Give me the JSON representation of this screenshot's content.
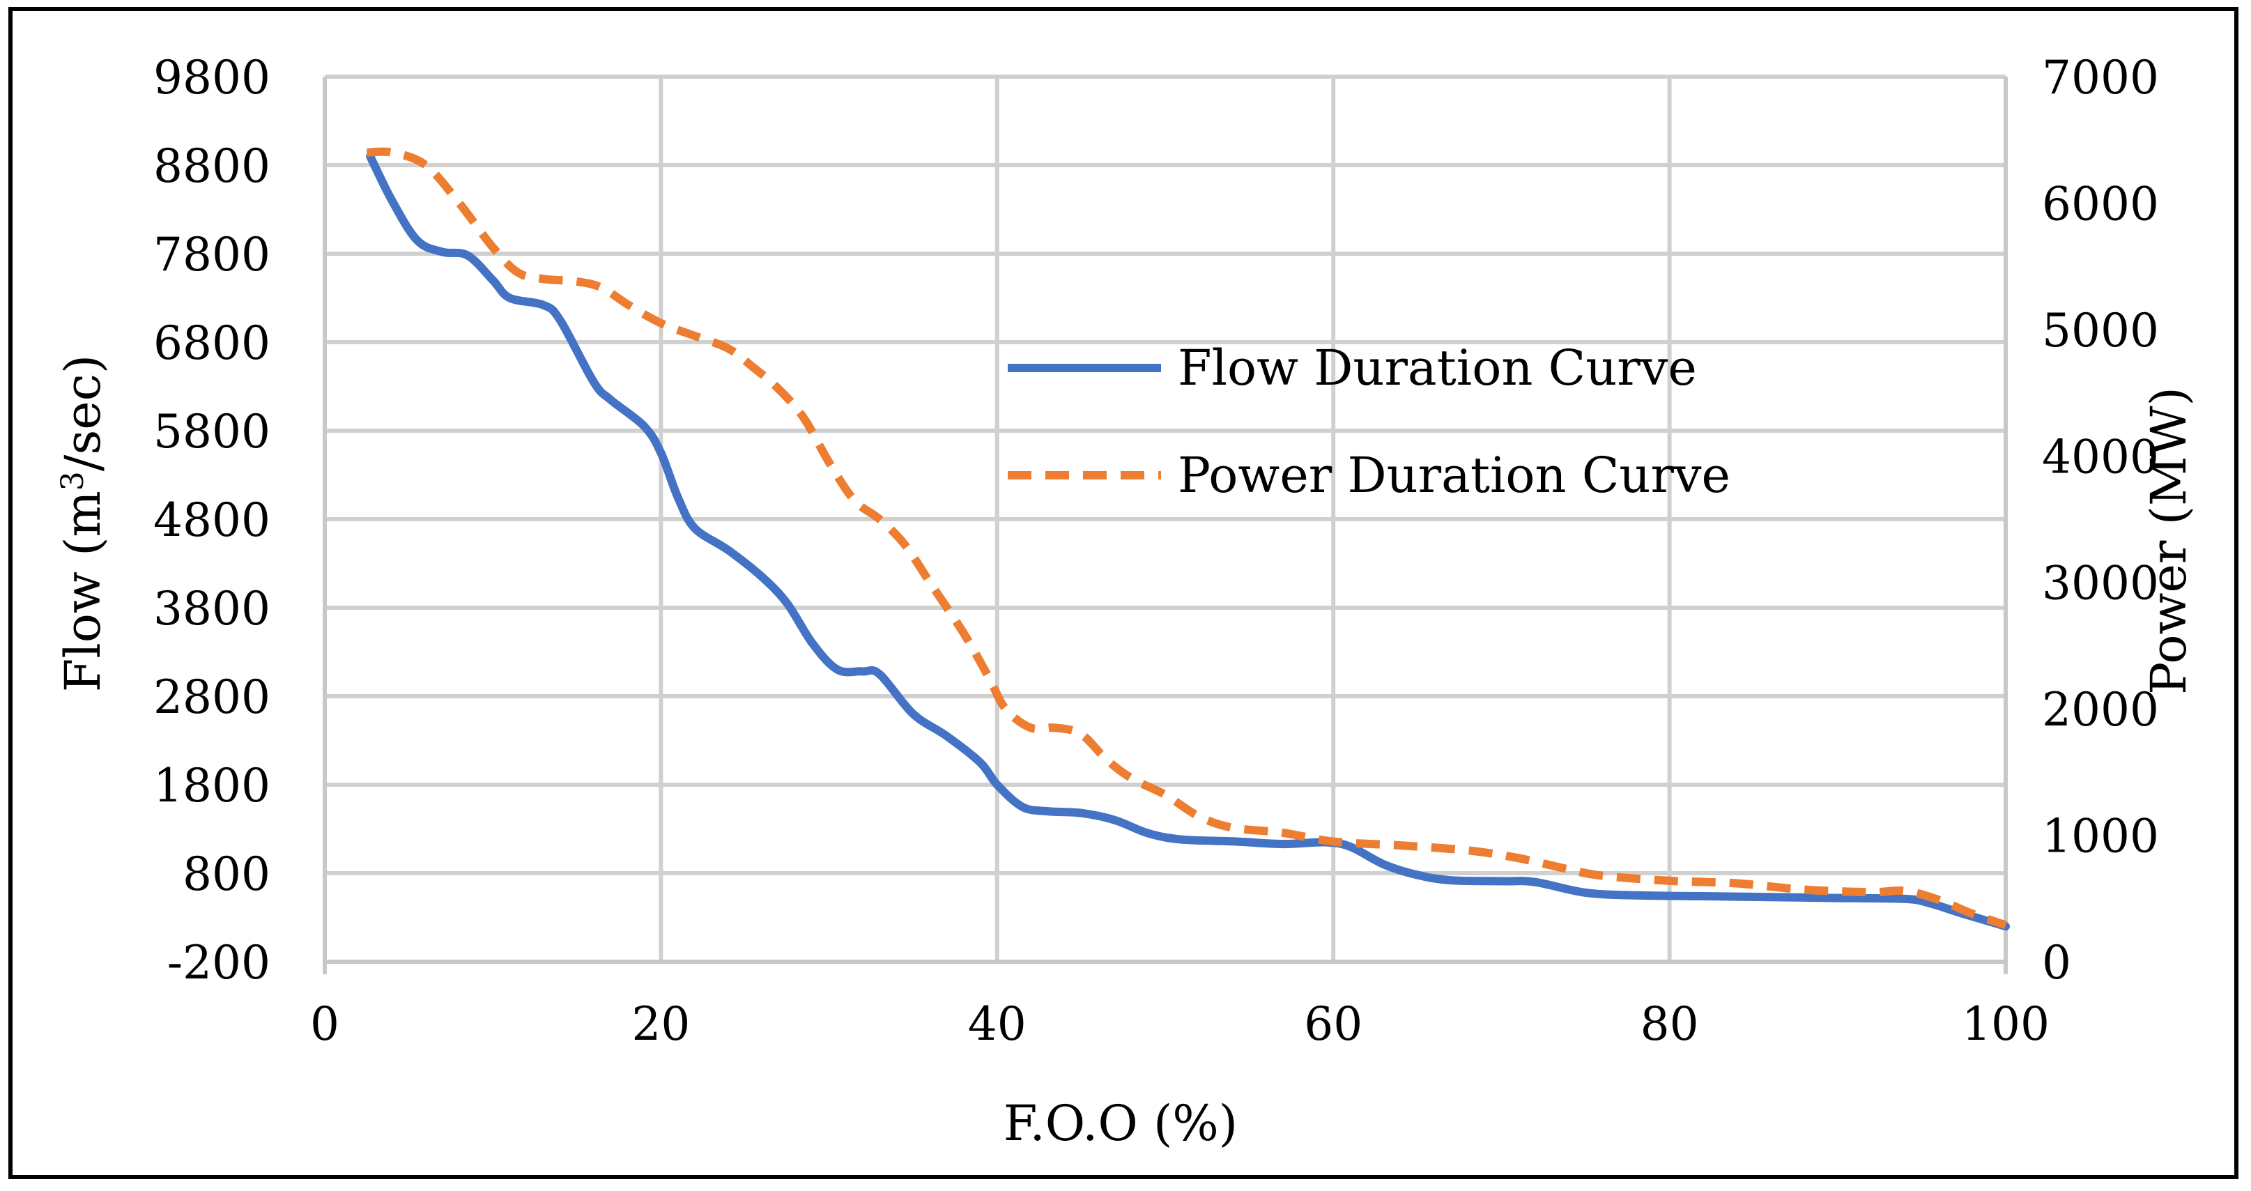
{
  "chart_data": {
    "type": "line",
    "xlabel": "F.O.O (%)",
    "ylabel_left": "Flow (m3/sec)",
    "ylabel_left_parts": {
      "main": "Flow (m",
      "sup": "3",
      "tail": "/sec)"
    },
    "ylabel_right": "Power (MW)",
    "xlim": [
      0,
      100
    ],
    "ylim_left": [
      -200,
      9800
    ],
    "ylim_right": [
      0,
      7000
    ],
    "x_ticks": [
      "0",
      "20",
      "40",
      "60",
      "80",
      "100"
    ],
    "y_left_ticks": [
      "9800",
      "8800",
      "7800",
      "6800",
      "5800",
      "4800",
      "3800",
      "2800",
      "1800",
      "800",
      "-200"
    ],
    "y_right_ticks": [
      "7000",
      "6000",
      "5000",
      "4000",
      "3000",
      "2000",
      "1000",
      "0"
    ],
    "grid": true,
    "legend_position": "center-right",
    "series": [
      {
        "name": "Flow Duration Curve",
        "axis": "left",
        "color": "#4472C4",
        "dash": "solid",
        "points": [
          [
            2.7,
            8900
          ],
          [
            4,
            8400
          ],
          [
            5.5,
            7950
          ],
          [
            7,
            7820
          ],
          [
            8.5,
            7780
          ],
          [
            10,
            7500
          ],
          [
            11,
            7300
          ],
          [
            13,
            7220
          ],
          [
            14,
            7050
          ],
          [
            16,
            6350
          ],
          [
            17,
            6150
          ],
          [
            19,
            5850
          ],
          [
            20,
            5550
          ],
          [
            21,
            5050
          ],
          [
            22,
            4700
          ],
          [
            24,
            4450
          ],
          [
            26,
            4150
          ],
          [
            27.5,
            3850
          ],
          [
            29,
            3400
          ],
          [
            30.5,
            3100
          ],
          [
            32,
            3080
          ],
          [
            33,
            3050
          ],
          [
            35,
            2600
          ],
          [
            37,
            2350
          ],
          [
            39,
            2050
          ],
          [
            40,
            1800
          ],
          [
            41.5,
            1550
          ],
          [
            43,
            1500
          ],
          [
            45,
            1480
          ],
          [
            47,
            1400
          ],
          [
            49,
            1250
          ],
          [
            51,
            1180
          ],
          [
            54,
            1160
          ],
          [
            57,
            1130
          ],
          [
            59.5,
            1150
          ],
          [
            61,
            1100
          ],
          [
            63,
            900
          ],
          [
            65,
            780
          ],
          [
            67,
            720
          ],
          [
            70,
            710
          ],
          [
            72,
            700
          ],
          [
            75,
            580
          ],
          [
            78,
            550
          ],
          [
            82,
            540
          ],
          [
            86,
            530
          ],
          [
            90,
            520
          ],
          [
            94,
            510
          ],
          [
            95.5,
            460
          ],
          [
            97.5,
            340
          ],
          [
            100,
            200
          ]
        ]
      },
      {
        "name": "Power Duration Curve",
        "axis": "right",
        "color": "#ED7D31",
        "dash": "dashed",
        "points": [
          [
            2.5,
            6400
          ],
          [
            4,
            6400
          ],
          [
            6,
            6300
          ],
          [
            8,
            6000
          ],
          [
            10,
            5650
          ],
          [
            11.5,
            5450
          ],
          [
            13,
            5400
          ],
          [
            15,
            5380
          ],
          [
            16.5,
            5330
          ],
          [
            18,
            5200
          ],
          [
            20,
            5050
          ],
          [
            22,
            4950
          ],
          [
            24,
            4850
          ],
          [
            25.5,
            4700
          ],
          [
            27,
            4530
          ],
          [
            28.5,
            4300
          ],
          [
            30,
            3950
          ],
          [
            31.5,
            3650
          ],
          [
            33,
            3500
          ],
          [
            34.5,
            3300
          ],
          [
            36,
            3000
          ],
          [
            38,
            2600
          ],
          [
            39.5,
            2250
          ],
          [
            40.5,
            2000
          ],
          [
            42,
            1850
          ],
          [
            43.5,
            1850
          ],
          [
            45,
            1800
          ],
          [
            46.5,
            1600
          ],
          [
            48,
            1450
          ],
          [
            50,
            1320
          ],
          [
            52,
            1150
          ],
          [
            54,
            1060
          ],
          [
            57,
            1020
          ],
          [
            60,
            950
          ],
          [
            64,
            920
          ],
          [
            68,
            880
          ],
          [
            71,
            820
          ],
          [
            74,
            730
          ],
          [
            76,
            680
          ],
          [
            80,
            640
          ],
          [
            84,
            620
          ],
          [
            88,
            570
          ],
          [
            92,
            550
          ],
          [
            94,
            560
          ],
          [
            96,
            490
          ],
          [
            98,
            380
          ],
          [
            100,
            290
          ]
        ]
      }
    ]
  }
}
